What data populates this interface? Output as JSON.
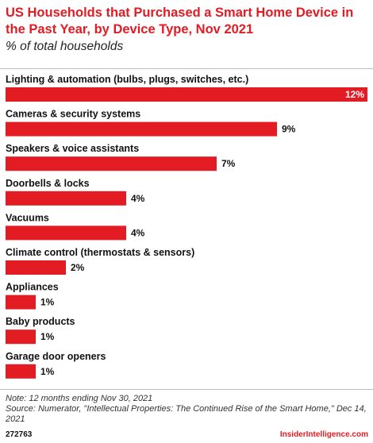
{
  "header": {
    "title": "US Households that Purchased a Smart Home Device in the Past Year, by Device Type, Nov 2021",
    "subtitle": "% of total households"
  },
  "colors": {
    "bar": "#e31b23",
    "title": "#e31b23",
    "brand": "#e31b23"
  },
  "chart_data": {
    "type": "bar",
    "orientation": "horizontal",
    "unit": "%",
    "categories": [
      "Lighting & automation (bulbs, plugs, switches, etc.)",
      "Cameras & security systems",
      "Speakers & voice assistants",
      "Doorbells & locks",
      "Vacuums",
      "Climate control (thermostats & sensors)",
      "Appliances",
      "Baby products",
      "Garage door openers"
    ],
    "values": [
      12,
      9,
      7,
      4,
      4,
      2,
      1,
      1,
      1
    ],
    "data_labels": [
      "12%",
      "9%",
      "7%",
      "4%",
      "4%",
      "2%",
      "1%",
      "1%",
      "1%"
    ],
    "xlim": [
      0,
      12
    ],
    "grid": false,
    "legend": "none"
  },
  "footer": {
    "note": "Note: 12 months ending Nov 30, 2021",
    "source": "Source: Numerator, \"Intellectual Properties: The Continued Rise of the Smart Home,\" Dec 14, 2021",
    "chart_id": "272763",
    "brand": "InsiderIntelligence.com"
  }
}
